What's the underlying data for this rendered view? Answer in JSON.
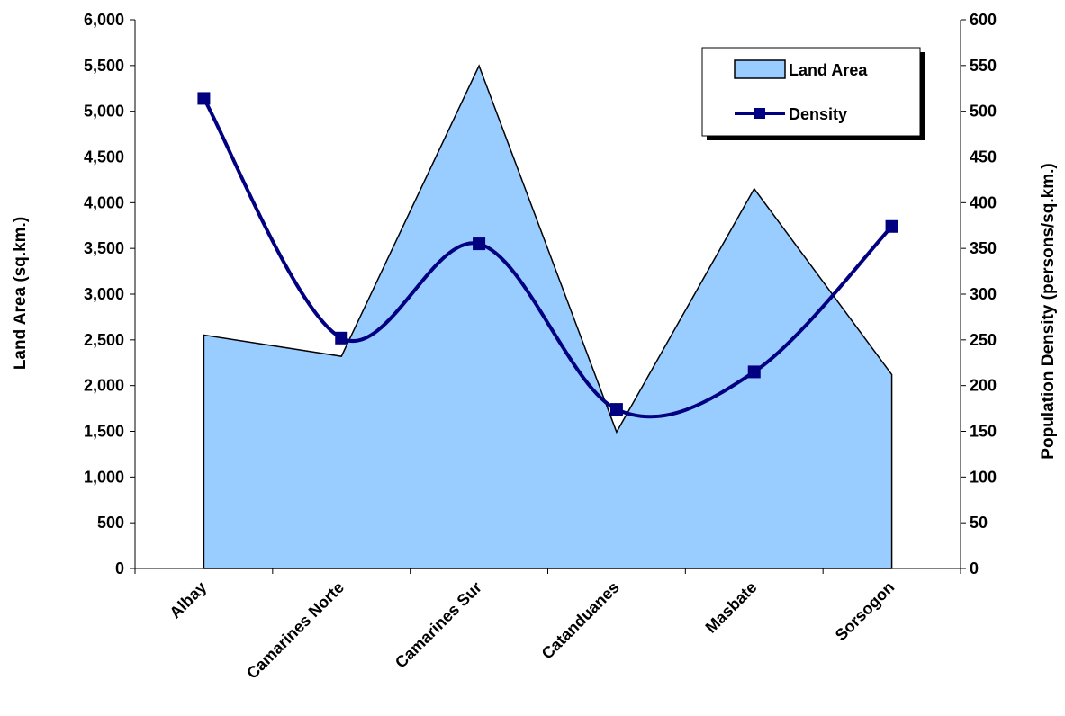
{
  "chart_data": {
    "type": "area",
    "title": "",
    "categories": [
      "Albay",
      "Camarines Norte",
      "Camarines Sur",
      "Catanduanes",
      "Masbate",
      "Sorsogon"
    ],
    "series": [
      {
        "name": "Land Area",
        "type": "area",
        "axis": "left",
        "values": [
          2553,
          2320,
          5497,
          1492,
          4152,
          2120
        ],
        "color": "#99ccff",
        "stroke": "#000000"
      },
      {
        "name": "Density",
        "type": "line",
        "axis": "right",
        "smooth": true,
        "marker": "square",
        "values": [
          514,
          252,
          355,
          174,
          215,
          374
        ],
        "color": "#000080"
      }
    ],
    "ylabel": "Land Area (sq.km.)",
    "ylabel_right": "Population Density (persons/sq.km.)",
    "ylim": [
      0,
      6000
    ],
    "ylim_right": [
      0,
      600
    ],
    "y_ticks": [
      "0",
      "500",
      "1,000",
      "1,500",
      "2,000",
      "2,500",
      "3,000",
      "3,500",
      "4,000",
      "4,500",
      "5,000",
      "5,500",
      "6,000"
    ],
    "y_ticks_right": [
      "0",
      "50",
      "100",
      "150",
      "200",
      "250",
      "300",
      "350",
      "400",
      "450",
      "500",
      "550",
      "600"
    ],
    "grid": false,
    "legend_position": "top-right"
  }
}
